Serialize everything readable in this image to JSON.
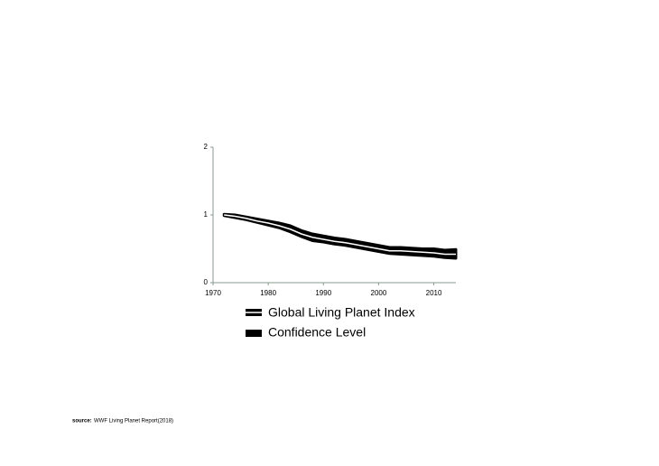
{
  "chart_data": {
    "type": "line",
    "x": [
      1972,
      1974,
      1976,
      1978,
      1980,
      1982,
      1984,
      1986,
      1988,
      1990,
      1992,
      1994,
      1996,
      1998,
      2000,
      2002,
      2004,
      2006,
      2008,
      2010,
      2012,
      2014
    ],
    "series": [
      {
        "name": "Global Living Planet Index",
        "color": "#ffffff",
        "values": [
          1.0,
          0.98,
          0.95,
          0.91,
          0.88,
          0.84,
          0.79,
          0.72,
          0.67,
          0.64,
          0.61,
          0.59,
          0.56,
          0.53,
          0.5,
          0.47,
          0.47,
          0.46,
          0.45,
          0.44,
          0.42,
          0.42
        ]
      },
      {
        "name": "Confidence Level",
        "color": "#000000",
        "lower": [
          0.99,
          0.96,
          0.93,
          0.89,
          0.85,
          0.81,
          0.75,
          0.68,
          0.62,
          0.6,
          0.57,
          0.55,
          0.52,
          0.49,
          0.46,
          0.43,
          0.42,
          0.41,
          0.4,
          0.39,
          0.37,
          0.36
        ],
        "upper": [
          1.01,
          1.0,
          0.97,
          0.94,
          0.91,
          0.88,
          0.84,
          0.77,
          0.72,
          0.69,
          0.66,
          0.64,
          0.61,
          0.58,
          0.55,
          0.52,
          0.52,
          0.51,
          0.5,
          0.5,
          0.48,
          0.49
        ]
      }
    ],
    "xlim": [
      1970,
      2014
    ],
    "xticks": [
      1970,
      1980,
      1990,
      2000,
      2010
    ],
    "ylim": [
      0,
      2
    ],
    "yticks": [
      0,
      1,
      2
    ]
  },
  "source": {
    "label": "source:",
    "text": "WWF Living Planet Report(2018)"
  }
}
